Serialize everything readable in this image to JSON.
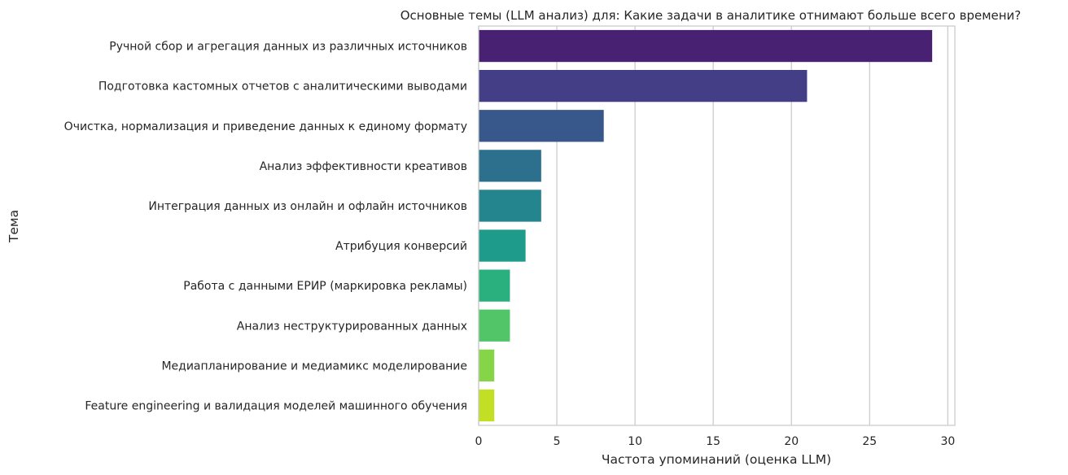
{
  "chart_data": {
    "type": "bar",
    "orientation": "horizontal",
    "title": "Основные темы (LLM анализ) для: Какие задачи в аналитике отнимают больше всего времени?",
    "xlabel": "Частота упоминаний (оценка LLM)",
    "ylabel": "Тема",
    "xlim": [
      0,
      30.45
    ],
    "xticks": [
      0,
      5,
      10,
      15,
      20,
      25,
      30
    ],
    "grid": true,
    "categories": [
      "Ручной сбор и агрегация данных из различных источников",
      "Подготовка кастомных отчетов с аналитическими выводами",
      "Очистка, нормализация и приведение данных к единому формату",
      "Анализ эффективности креативов",
      "Интеграция данных из онлайн и офлайн источников",
      "Атрибуция конверсий",
      "Работа с данными ЕРИР (маркировка рекламы)",
      "Анализ неструктурированных данных",
      "Медиапланирование и медиамикс моделирование",
      "Feature engineering и валидация моделей машинного обучения"
    ],
    "values": [
      29,
      21,
      8,
      4,
      4,
      3,
      2,
      2,
      1,
      1
    ],
    "colors": [
      "#482173",
      "#433e85",
      "#38588c",
      "#2d708e",
      "#25858e",
      "#1e9b8a",
      "#2ab07f",
      "#52c569",
      "#86d549",
      "#c2df23"
    ],
    "gridColor": "#cccccc",
    "frameColor": "#cccccc"
  }
}
